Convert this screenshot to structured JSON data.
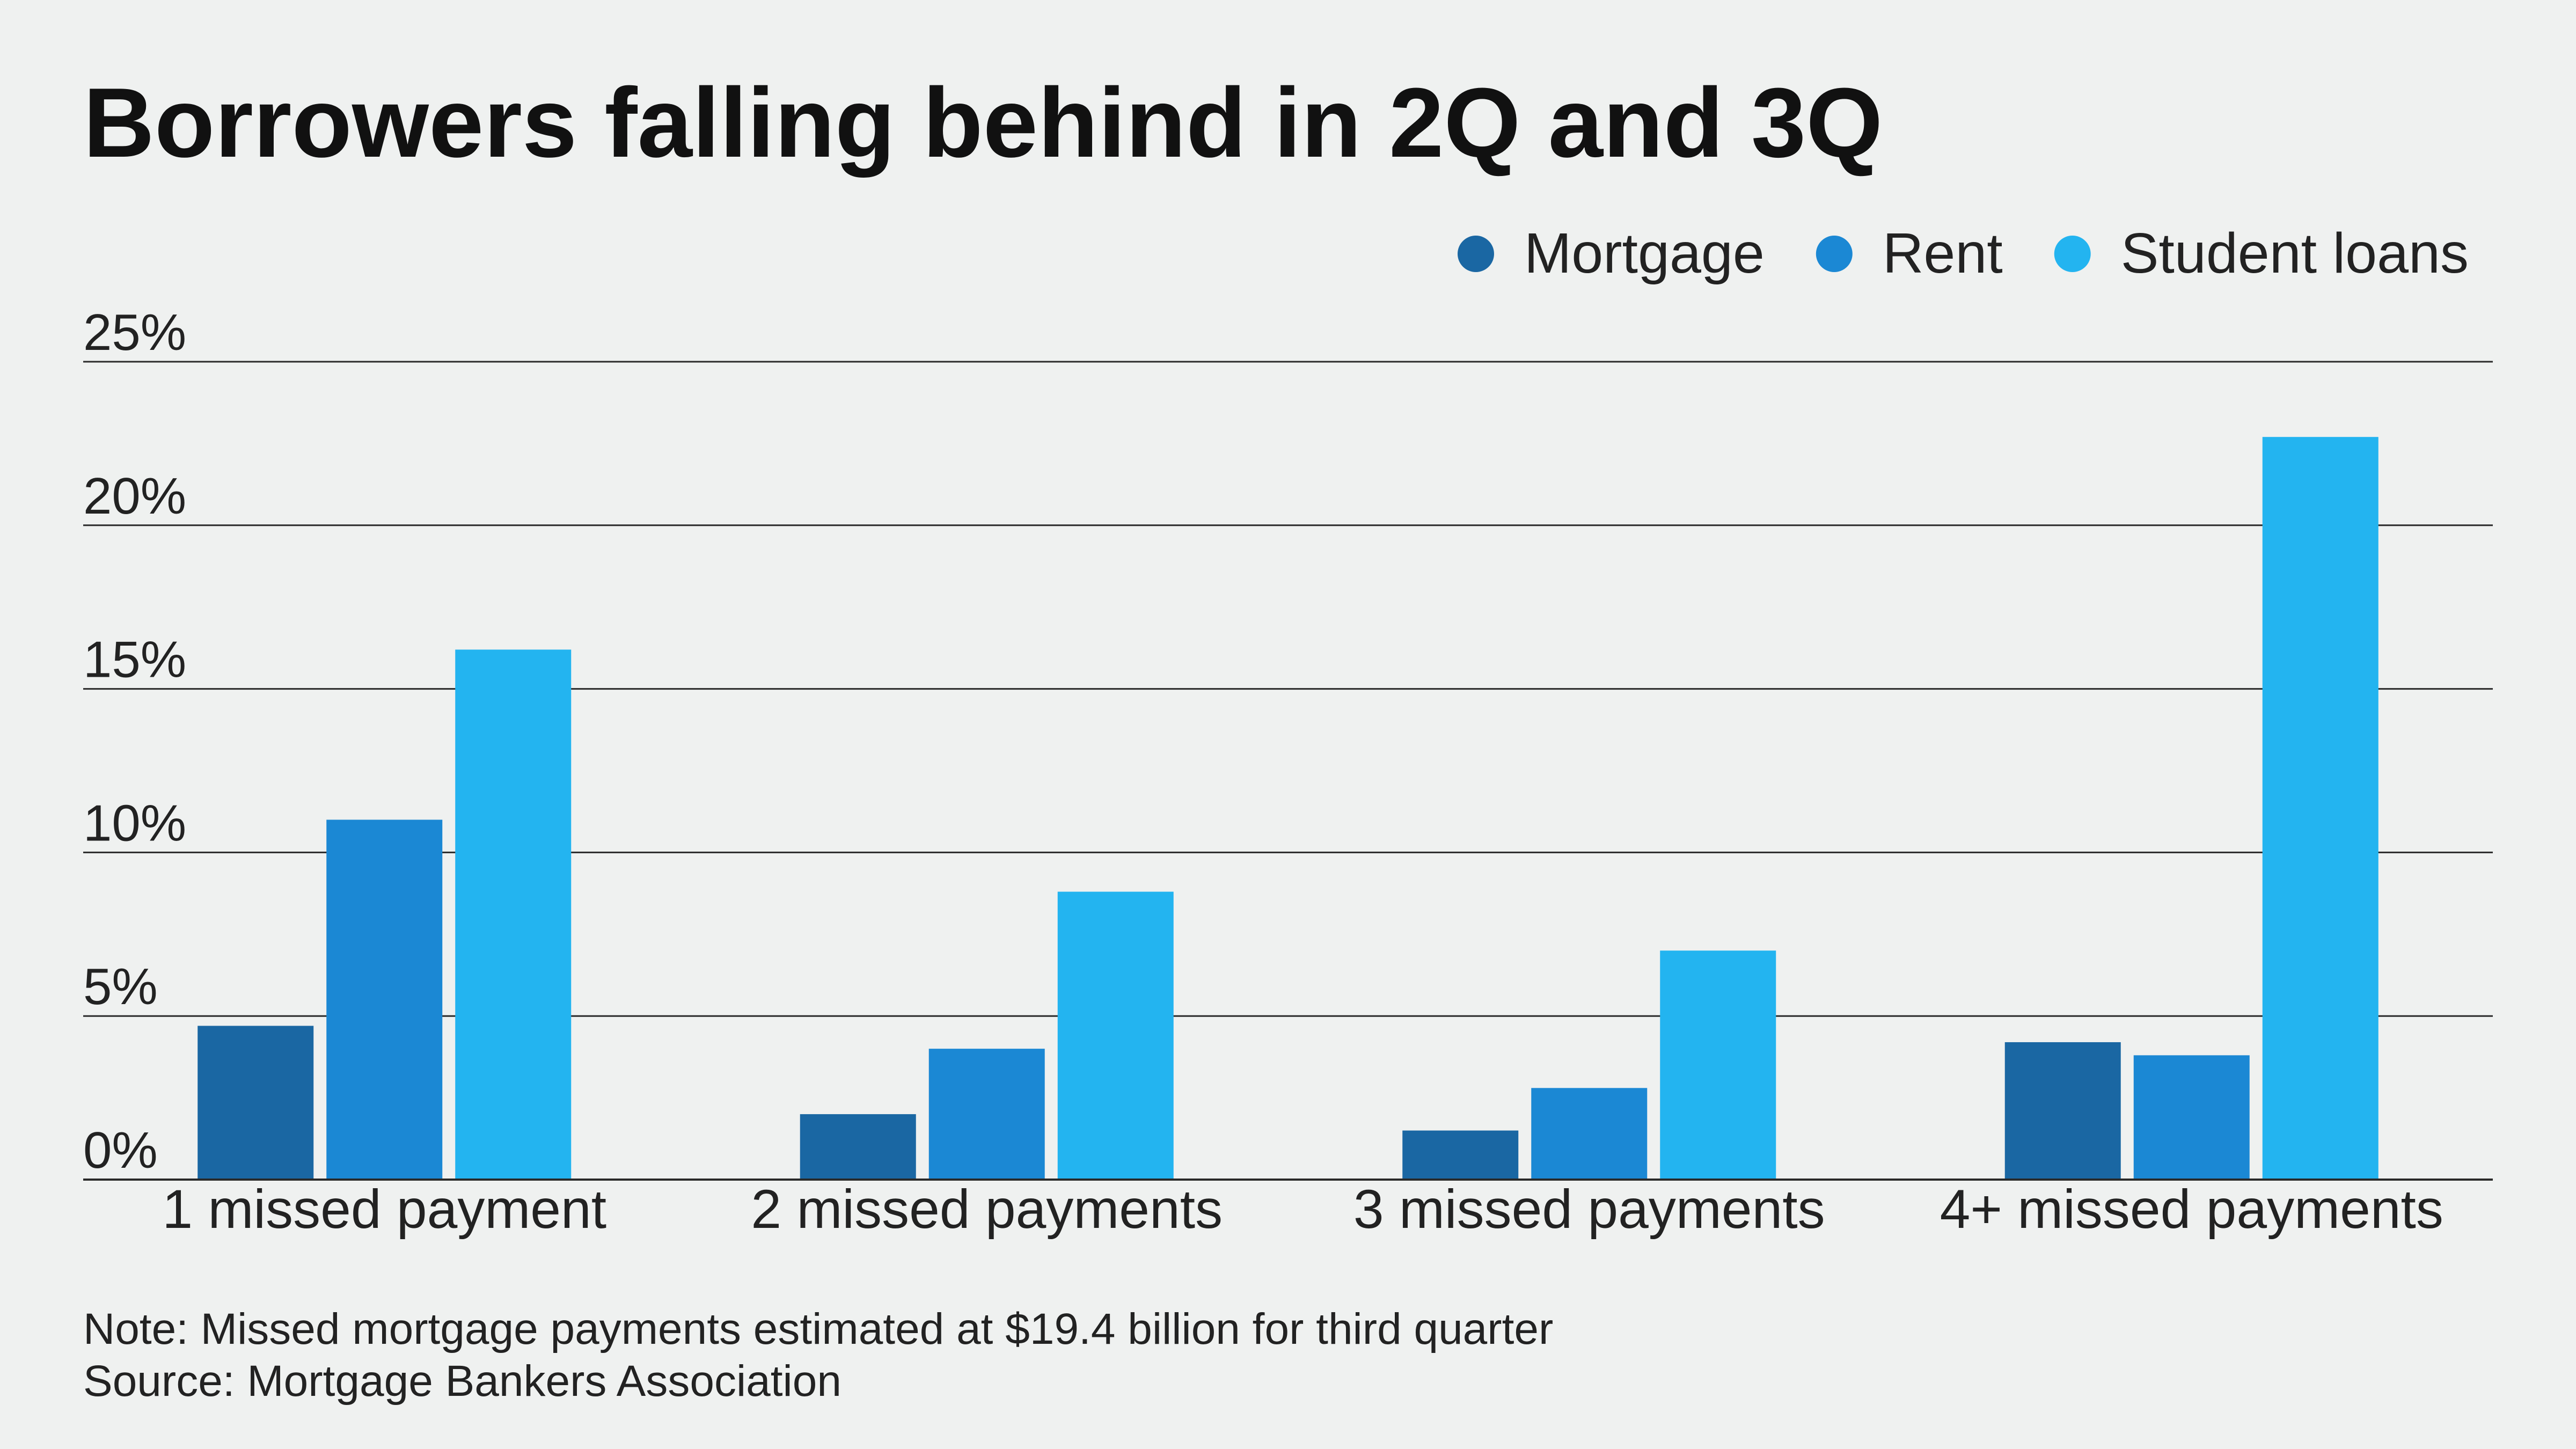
{
  "chart_data": {
    "type": "bar",
    "title": "Borrowers falling behind in 2Q and 3Q",
    "categories": [
      "1 missed payment",
      "2 missed payments",
      "3 missed payments",
      "4+ missed payments"
    ],
    "series": [
      {
        "name": "Mortgage",
        "color": "#1a67a3",
        "values": [
          4.7,
          2.0,
          1.5,
          4.2
        ]
      },
      {
        "name": "Rent",
        "color": "#1b88d4",
        "values": [
          11.0,
          4.0,
          2.8,
          3.8
        ]
      },
      {
        "name": "Student loans",
        "color": "#23b4f0",
        "values": [
          16.2,
          8.8,
          7.0,
          22.7
        ]
      }
    ],
    "yticks": [
      "0%",
      "5%",
      "10%",
      "15%",
      "20%",
      "25%"
    ],
    "ylim": [
      0,
      25
    ],
    "grid": true,
    "legend_position": "top-right",
    "note": "Note: Missed mortgage payments estimated at $19.4 billion for third quarter",
    "source": "Source: Mortgage Bankers Association"
  }
}
